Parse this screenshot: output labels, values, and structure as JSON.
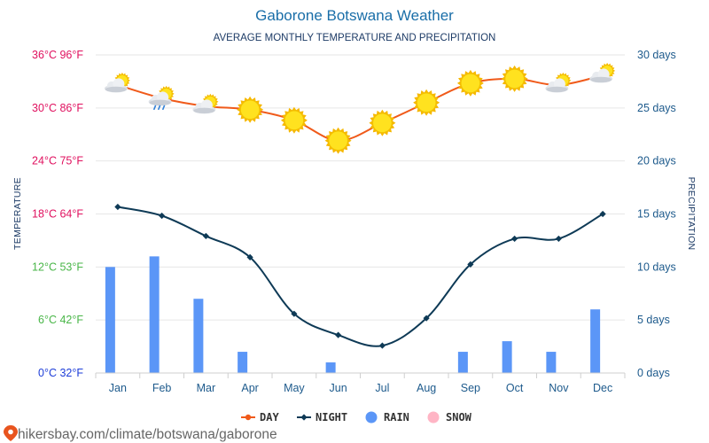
{
  "chart_data": {
    "type": "line",
    "title": "Gaborone Botswana Weather",
    "subtitle": "AVERAGE MONTHLY TEMPERATURE AND PRECIPITATION",
    "categories": [
      "Jan",
      "Feb",
      "Mar",
      "Apr",
      "May",
      "Jun",
      "Jul",
      "Aug",
      "Sep",
      "Oct",
      "Nov",
      "Dec"
    ],
    "series": [
      {
        "name": "DAY",
        "kind": "line",
        "axis": "temperature",
        "color": "#f05a1a",
        "values": [
          32.6,
          31.1,
          30.2,
          29.8,
          28.6,
          26.3,
          28.3,
          30.6,
          32.8,
          33.3,
          32.6,
          33.7
        ]
      },
      {
        "name": "NIGHT",
        "kind": "line",
        "axis": "temperature",
        "color": "#0e3a56",
        "values": [
          18.8,
          17.8,
          15.5,
          13.1,
          6.7,
          4.3,
          3.1,
          6.2,
          12.3,
          15.2,
          15.2,
          18.0
        ]
      },
      {
        "name": "RAIN",
        "kind": "bar",
        "axis": "precipitation",
        "color": "#5b96f7",
        "values": [
          10,
          11,
          7,
          2,
          0,
          1,
          0,
          0,
          2,
          3,
          2,
          6
        ]
      },
      {
        "name": "SNOW",
        "kind": "bar",
        "axis": "precipitation",
        "color": "#ffb5c5",
        "values": [
          0,
          0,
          0,
          0,
          0,
          0,
          0,
          0,
          0,
          0,
          0,
          0
        ]
      }
    ],
    "weather_icons": [
      "sun-cloud-icon",
      "sun-cloud-rain-icon",
      "sun-cloud-icon",
      "sun-icon",
      "sun-icon",
      "sun-icon",
      "sun-icon",
      "sun-icon",
      "sun-icon",
      "sun-icon",
      "sun-cloud-icon",
      "sun-cloud-icon"
    ],
    "temperature_axis": {
      "label": "TEMPERATURE",
      "range": [
        0,
        36
      ],
      "ticks": [
        {
          "value": 36,
          "label": "36°C 96°F",
          "color": "#e0115f"
        },
        {
          "value": 30,
          "label": "30°C 86°F",
          "color": "#e0115f"
        },
        {
          "value": 24,
          "label": "24°C 75°F",
          "color": "#e0115f"
        },
        {
          "value": 18,
          "label": "18°C 64°F",
          "color": "#e0115f"
        },
        {
          "value": 12,
          "label": "12°C 53°F",
          "color": "#49b648"
        },
        {
          "value": 6,
          "label": "6°C 42°F",
          "color": "#49b648"
        },
        {
          "value": 0,
          "label": "0°C 32°F",
          "color": "#1e3ed8"
        }
      ]
    },
    "precipitation_axis": {
      "label": "PRECIPITATION",
      "range": [
        0,
        30
      ],
      "ticks": [
        {
          "value": 30,
          "label": "30 days"
        },
        {
          "value": 25,
          "label": "25 days"
        },
        {
          "value": 20,
          "label": "20 days"
        },
        {
          "value": 15,
          "label": "15 days"
        },
        {
          "value": 10,
          "label": "10 days"
        },
        {
          "value": 5,
          "label": "5 days"
        },
        {
          "value": 0,
          "label": "0 days"
        }
      ],
      "color": "#1d5a8c"
    },
    "grid": true,
    "legend": {
      "position": "bottom",
      "items": [
        {
          "label": "DAY",
          "icon": "line-dot-icon",
          "color": "#f05a1a"
        },
        {
          "label": "NIGHT",
          "icon": "line-diamond-icon",
          "color": "#0e3a56"
        },
        {
          "label": "RAIN",
          "icon": "circle-icon",
          "color": "#5b96f7"
        },
        {
          "label": "SNOW",
          "icon": "circle-icon",
          "color": "#ffb5c5"
        }
      ]
    }
  },
  "footer": {
    "icon": "map-pin-icon",
    "text": "hikersbay.com/climate/botswana/gaborone",
    "color": "#e8541e"
  }
}
